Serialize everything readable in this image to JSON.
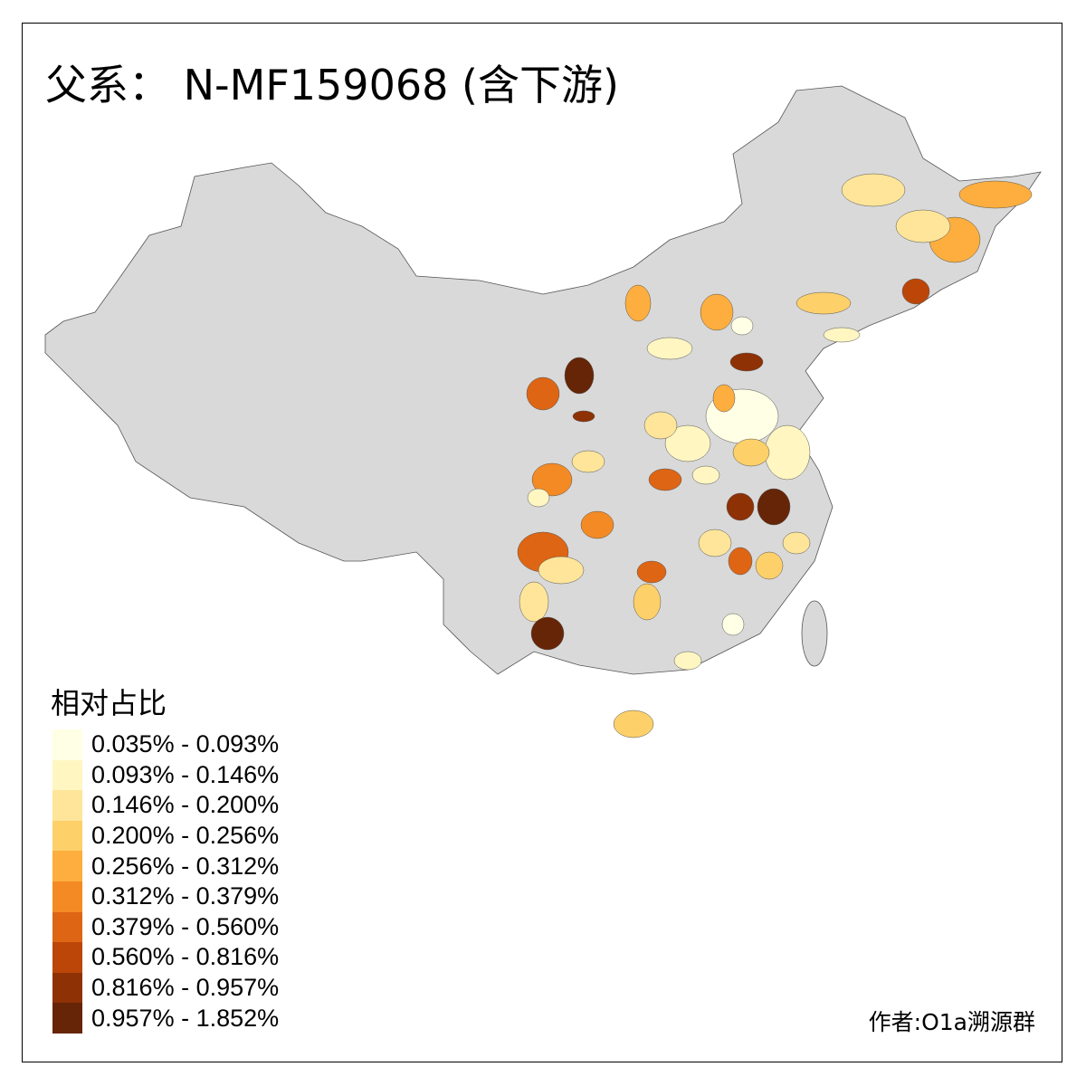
{
  "title": "父系： N-MF159068 (含下游)",
  "legend": {
    "title": "相对占比",
    "items": [
      {
        "label": "0.035% - 0.093%",
        "color": "#FFFFE5"
      },
      {
        "label": "0.093% - 0.146%",
        "color": "#FFF6C2"
      },
      {
        "label": "0.146% - 0.200%",
        "color": "#FEE59A"
      },
      {
        "label": "0.200% - 0.256%",
        "color": "#FED06A"
      },
      {
        "label": "0.256% - 0.312%",
        "color": "#FDAE3E"
      },
      {
        "label": "0.312% - 0.379%",
        "color": "#F48A24"
      },
      {
        "label": "0.379% - 0.560%",
        "color": "#DE6514"
      },
      {
        "label": "0.560% - 0.816%",
        "color": "#BB4607"
      },
      {
        "label": "0.816% - 0.957%",
        "color": "#8E3105"
      },
      {
        "label": "0.957% - 1.852%",
        "color": "#662506"
      }
    ]
  },
  "no_data_color": "#D9D9D9",
  "credit": "作者:O1a溯源群"
}
